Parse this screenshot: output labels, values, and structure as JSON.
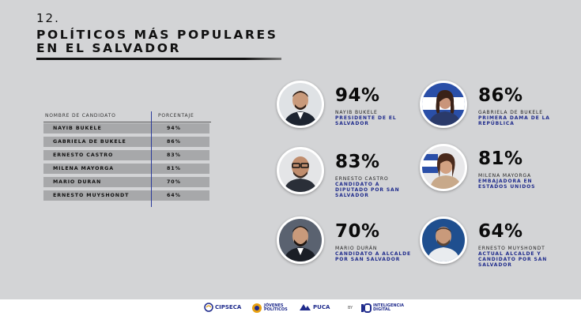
{
  "header": {
    "number": "12.",
    "title_line1": "POLÍTICOS MÁS POPULARES",
    "title_line2": "EN EL SALVADOR"
  },
  "chart_data": {
    "type": "table",
    "title": "POLÍTICOS MÁS POPULARES EN EL SALVADOR",
    "columns": [
      "NOMBRE DE CANDIDATO",
      "PORCENTAJE"
    ],
    "rows": [
      {
        "name": "NAYIB BUKELE",
        "pct": "94%",
        "value": 94
      },
      {
        "name": "GABRIELA DE BUKELE",
        "pct": "86%",
        "value": 86
      },
      {
        "name": "ERNESTO CASTRO",
        "pct": "83%",
        "value": 83
      },
      {
        "name": "MILENA MAYORGA",
        "pct": "81%",
        "value": 81
      },
      {
        "name": "MARIO DURAN",
        "pct": "70%",
        "value": 70
      },
      {
        "name": "ERNESTO MUYSHONDT",
        "pct": "64%",
        "value": 64
      }
    ]
  },
  "cards": [
    {
      "pct": "94%",
      "name": "NAYIB BUKELE",
      "role": "PRESIDENTE DE EL SALVADOR"
    },
    {
      "pct": "86%",
      "name": "GABRIELA DE BUKELE",
      "role": "PRIMERA DAMA DE LA REPÚBLICA"
    },
    {
      "pct": "83%",
      "name": "ERNESTO CASTRO",
      "role": "CANDIDATO A DIPUTADO POR SAN SALVADOR"
    },
    {
      "pct": "81%",
      "name": "MILENA MAYORGA",
      "role": "EMBAJADORA EN ESTADOS UNIDOS"
    },
    {
      "pct": "70%",
      "name": "MARIO DURÁN",
      "role": "CANDIDATO A ALCALDE POR SAN SALVADOR"
    },
    {
      "pct": "64%",
      "name": "ERNESTO MUYSHONDT",
      "role": "ACTUAL ALCALDE Y CANDIDATO POR SAN SALVADOR"
    }
  ],
  "footer": {
    "logo1": "CIPSECA",
    "logo2": "JÓVENES POLÍTICOS",
    "logo3": "PUCA",
    "by": "BY",
    "logo4": "INTELIGENCIA DIGITAL"
  },
  "colors": {
    "background": "#d3d4d6",
    "row": "#a7a8aa",
    "accent": "#1f2b8c"
  },
  "icons": [
    "person-photo-icon",
    "flag-icon",
    "cipseca-logo-icon",
    "puca-logo-icon",
    "inteligencia-digital-logo-icon"
  ]
}
